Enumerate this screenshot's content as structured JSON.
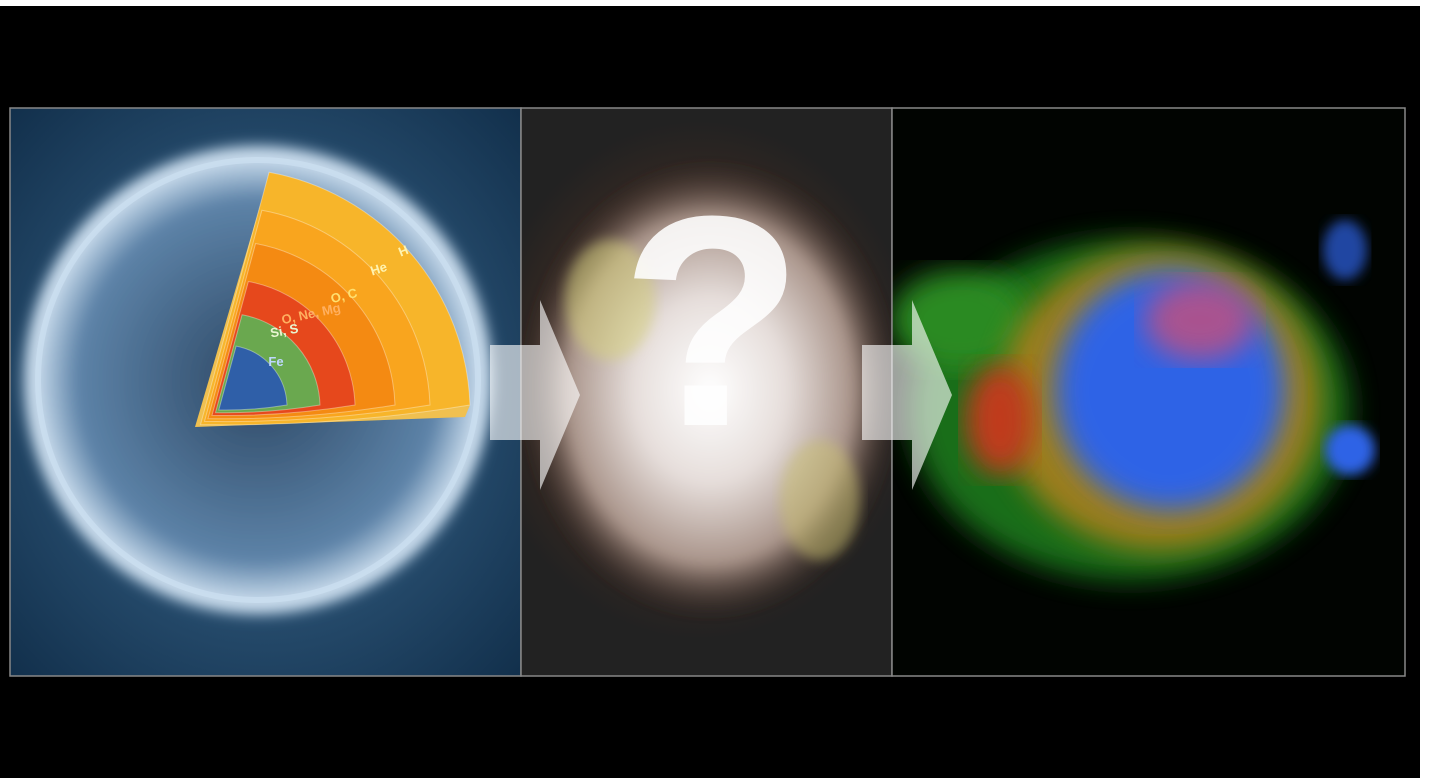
{
  "core_layers": [
    {
      "label": "H"
    },
    {
      "label": "He"
    },
    {
      "label": "O, C"
    },
    {
      "label": "O, Ne, Mg"
    },
    {
      "label": "Si, S"
    },
    {
      "label": "Fe"
    }
  ],
  "question_mark": "?"
}
